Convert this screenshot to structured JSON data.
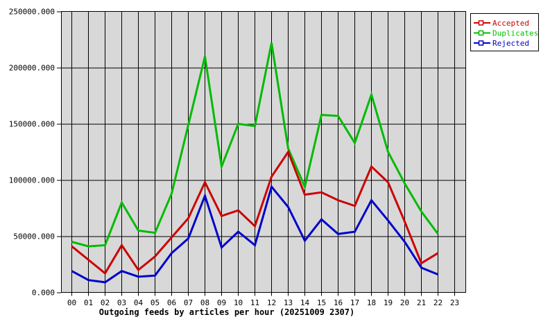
{
  "chart_data": {
    "type": "line",
    "title": "Outgoing feeds by articles per hour (20251009 2307)",
    "x_categories": [
      "00",
      "01",
      "02",
      "03",
      "04",
      "05",
      "06",
      "07",
      "08",
      "09",
      "10",
      "11",
      "12",
      "13",
      "14",
      "15",
      "16",
      "17",
      "18",
      "19",
      "20",
      "21",
      "22",
      "23"
    ],
    "plotted_hours": [
      "00",
      "01",
      "02",
      "03",
      "04",
      "05",
      "06",
      "07",
      "08",
      "09",
      "10",
      "11",
      "12",
      "13",
      "14",
      "15",
      "16",
      "17",
      "18",
      "19",
      "20",
      "21",
      "22"
    ],
    "xlabel": "",
    "ylabel": "",
    "ylim": [
      0,
      250000
    ],
    "y_tick_interval": 50000,
    "y_tick_labels": [
      "0.000",
      "50000.000",
      "100000.000",
      "150000.000",
      "200000.000",
      "250000.000"
    ],
    "grid": "on",
    "grid_color": "#000000",
    "plot_background": "#d8d8d8",
    "outer_background": "#ffffff",
    "legend_position": "top-right",
    "legend_entries": [
      "Accepted",
      "Duplicates",
      "Rejected"
    ],
    "series": [
      {
        "name": "Accepted",
        "color": "#cc0000",
        "values": [
          41000,
          29000,
          17000,
          42000,
          20000,
          32000,
          49000,
          66000,
          98000,
          68000,
          73000,
          59000,
          103000,
          125000,
          87000,
          89000,
          82000,
          77000,
          112000,
          98000,
          63000,
          26000,
          35000
        ]
      },
      {
        "name": "Duplicates",
        "color": "#00bb00",
        "values": [
          45000,
          41000,
          42000,
          80000,
          55000,
          53000,
          88000,
          149000,
          210000,
          112000,
          150000,
          148000,
          222000,
          128000,
          94000,
          158000,
          157000,
          133000,
          176000,
          125000,
          97000,
          72000,
          52000
        ]
      },
      {
        "name": "Rejected",
        "color": "#0000cc",
        "values": [
          19000,
          11000,
          9000,
          19000,
          14000,
          15000,
          35000,
          48000,
          86000,
          40000,
          54000,
          42000,
          94000,
          76000,
          46000,
          65000,
          52000,
          54000,
          82000,
          64000,
          45000,
          22000,
          16000
        ]
      }
    ]
  }
}
